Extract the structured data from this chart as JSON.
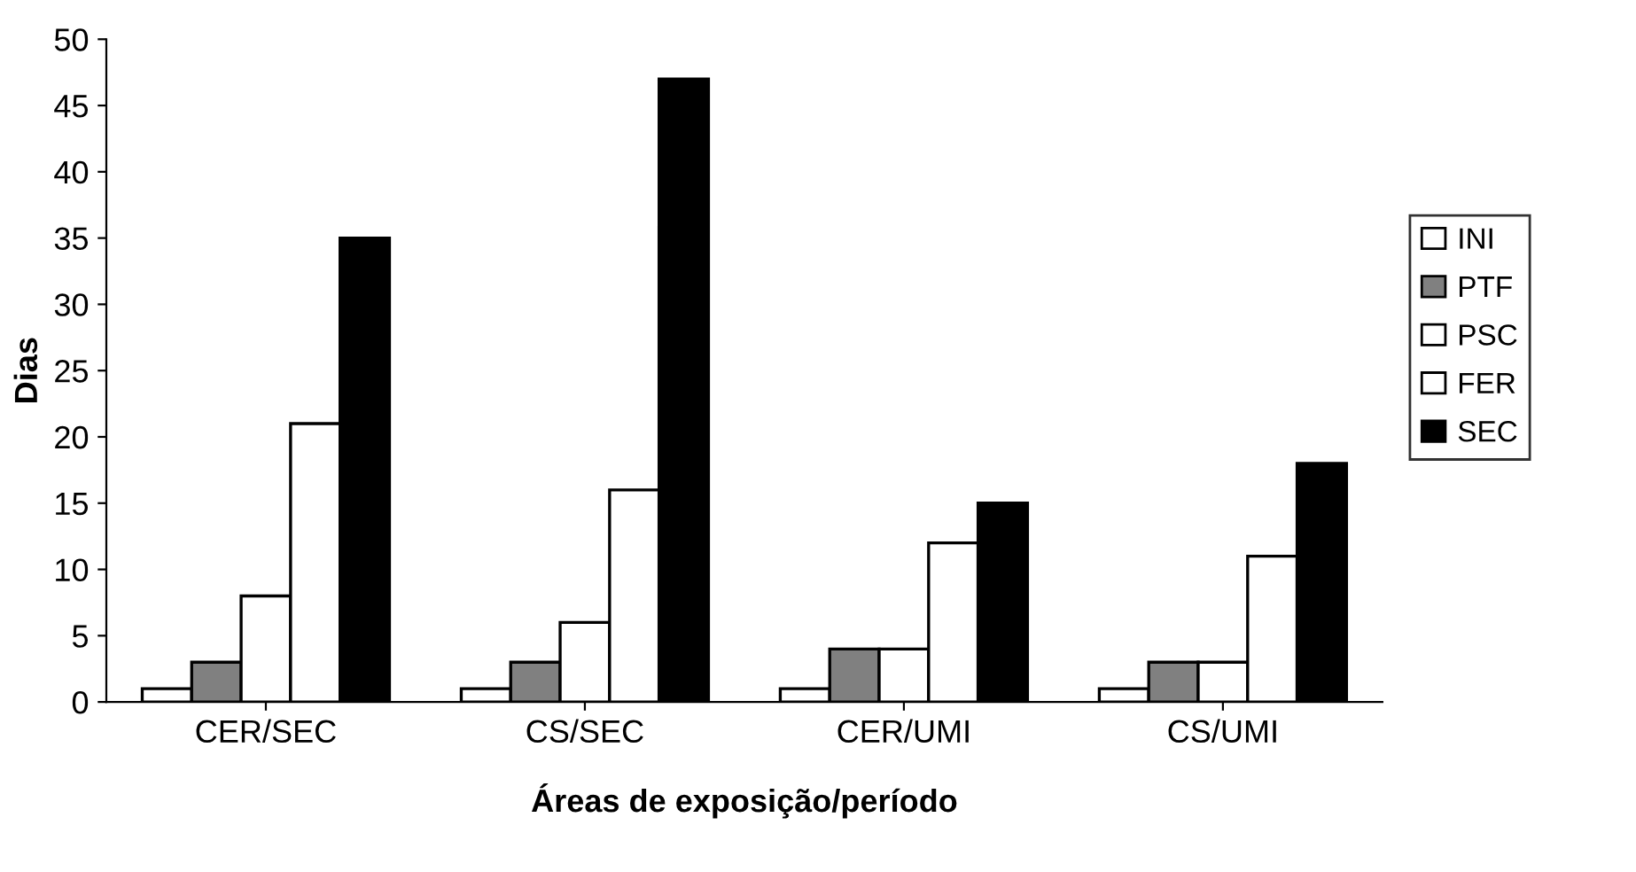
{
  "chart_data": {
    "type": "bar",
    "xlabel": "Áreas de exposição/período",
    "ylabel": "Dias",
    "categories": [
      "CER/SEC",
      "CS/SEC",
      "CER/UMI",
      "CS/UMI"
    ],
    "series": [
      {
        "name": "INI",
        "color": "#ffffff",
        "values": [
          1,
          1,
          1,
          1
        ]
      },
      {
        "name": "PTF",
        "color": "#808080",
        "values": [
          3,
          3,
          4,
          3
        ]
      },
      {
        "name": "PSC",
        "color": "#ffffff",
        "values": [
          8,
          6,
          4,
          3
        ]
      },
      {
        "name": "FER",
        "color": "#ffffff",
        "values": [
          21,
          16,
          12,
          11
        ]
      },
      {
        "name": "SEC",
        "color": "#000000",
        "values": [
          35,
          47,
          15,
          18
        ]
      }
    ],
    "ylim": [
      0,
      50
    ],
    "yticks": [
      0,
      5,
      10,
      15,
      20,
      25,
      30,
      35,
      40,
      45,
      50
    ],
    "grid": false,
    "legend": "right"
  }
}
